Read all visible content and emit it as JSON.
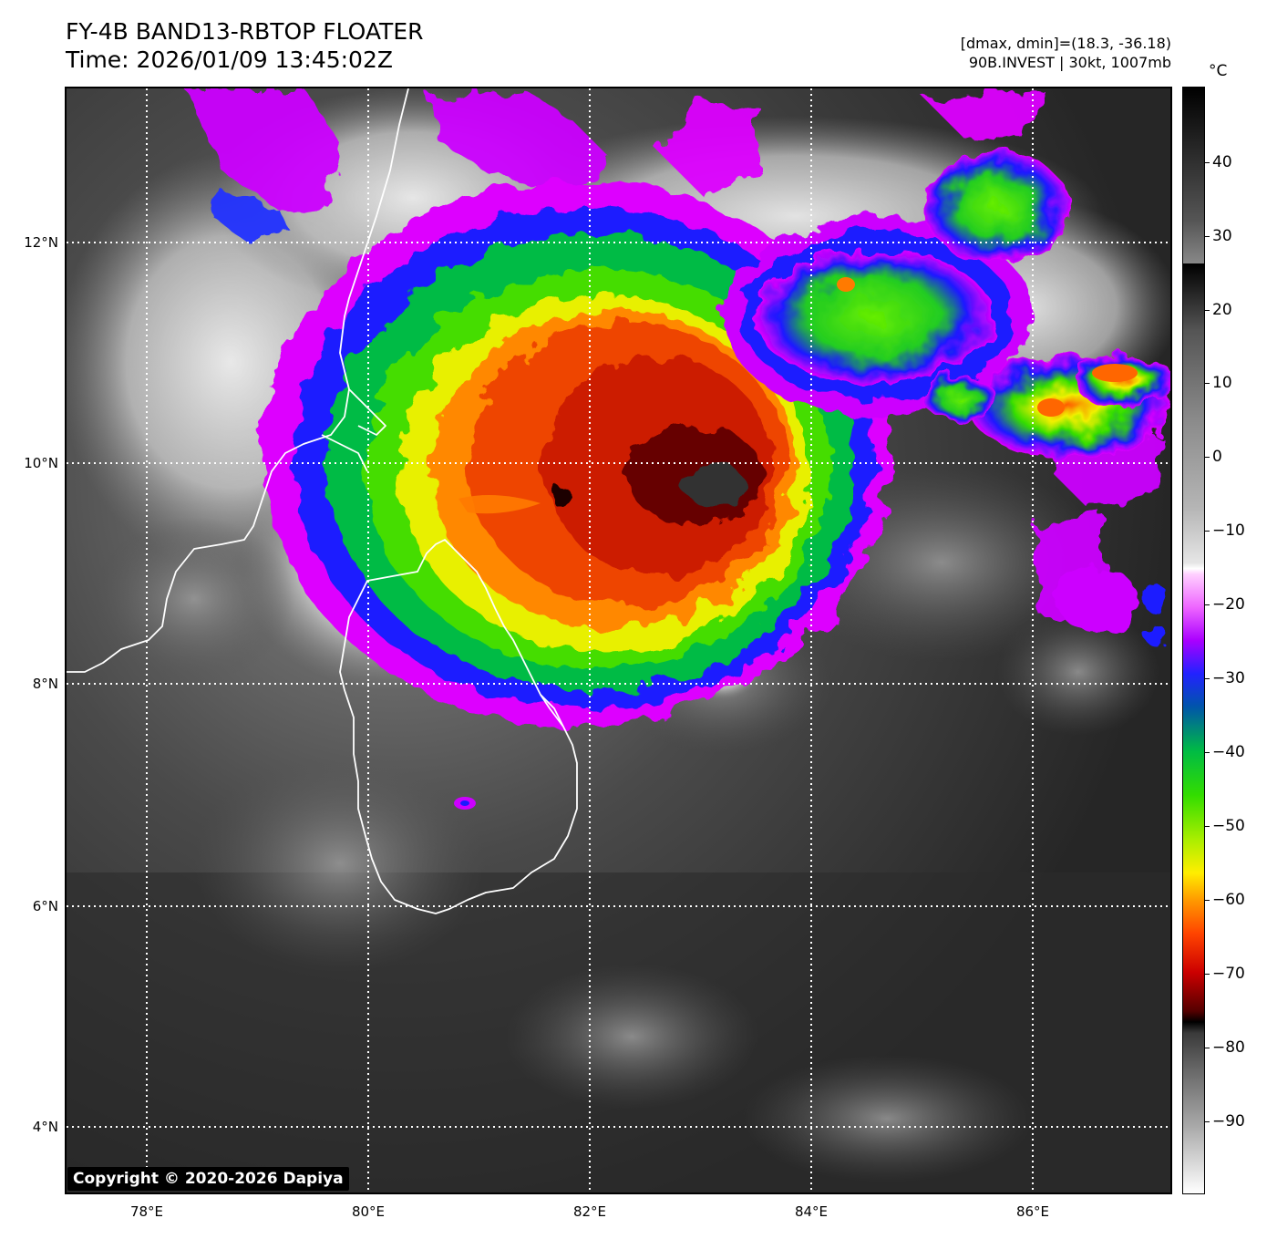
{
  "header": {
    "title_line1": "FY-4B BAND13-RBTOP FLOATER",
    "title_line2": "Time: 2026/01/09 13:45:02Z",
    "range_text": "[dmax, dmin]=(18.3, -36.18)",
    "storm_text": "90B.INVEST | 30kt, 1007mb"
  },
  "map": {
    "lat_labels": [
      "12°N",
      "10°N",
      "8°N",
      "6°N",
      "4°N"
    ],
    "lon_labels": [
      "78°E",
      "80°E",
      "82°E",
      "84°E",
      "86°E"
    ],
    "copyright": "Copyright © 2020-2026 Dapiya"
  },
  "colorbar": {
    "unit": "°C",
    "ticks": [
      "40",
      "30",
      "20",
      "10",
      "0",
      "−10",
      "−20",
      "−30",
      "−40",
      "−50",
      "−60",
      "−70",
      "−80",
      "−90"
    ]
  },
  "colors": {
    "coldest_core": "#1a0000",
    "red": "#cc1a00",
    "orange": "#ff6a00",
    "yellow": "#f0f000",
    "green": "#22dd00",
    "blue": "#1a1aff",
    "magenta": "#dd00ff"
  }
}
